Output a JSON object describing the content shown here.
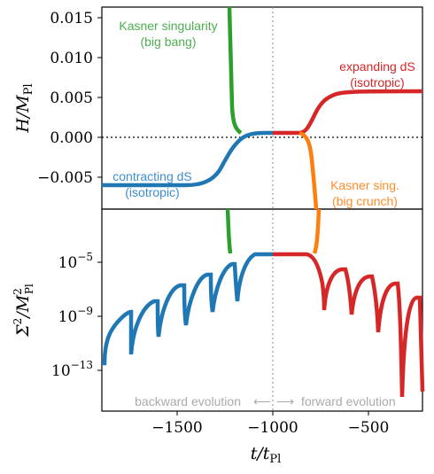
{
  "chart_data": [
    {
      "type": "line",
      "ylabel": "H/M_Pl",
      "xlim": [
        -1970,
        -560
      ],
      "ylim": [
        -0.0085,
        0.0163
      ],
      "yticks": [
        -0.005,
        0.0,
        0.005,
        0.01,
        0.015
      ],
      "ytick_labels": [
        "−0.005",
        "0.000",
        "0.005",
        "0.010",
        "0.015"
      ],
      "reference_line_y": 0.0,
      "reference_line_x": -1000,
      "series": [
        {
          "color": "#1f77b4",
          "x": [
            -1970,
            -1550,
            -1450,
            -1400,
            -1350,
            -1300,
            -1250,
            -1200,
            -1170,
            -1140,
            -1000
          ],
          "y": [
            -0.0058,
            -0.0058,
            -0.0056,
            -0.005,
            -0.004,
            -0.0028,
            -0.0015,
            -0.0004,
            0.0002,
            0.0006,
            0.0006
          ]
        },
        {
          "color": "#2ca02c",
          "x": [
            -1140,
            -1160,
            -1180,
            -1190,
            -1198,
            -1205,
            -1210
          ],
          "y": [
            0.0006,
            0.0014,
            0.0035,
            0.006,
            0.009,
            0.013,
            0.0163
          ]
        },
        {
          "color": "#d62728",
          "x": [
            -1000,
            -860,
            -830,
            -800,
            -750,
            -700,
            -650,
            -600,
            -550,
            -450,
            -560
          ],
          "y": [
            0.0006,
            0.0006,
            0.0012,
            0.002,
            0.0032,
            0.0043,
            0.005,
            0.0054,
            0.0056,
            0.0058,
            0.0058
          ]
        },
        {
          "color": "#ff7f0e",
          "x": [
            -860,
            -840,
            -820,
            -800,
            -792,
            -785,
            -780
          ],
          "y": [
            0.0006,
            -0.0002,
            -0.002,
            -0.0048,
            -0.0068,
            -0.008,
            -0.0085
          ]
        }
      ]
    },
    {
      "type": "line",
      "ylabel": "Σ²/M²_Pl",
      "xlabel": "t/t_Pl",
      "xlim": [
        -1970,
        -560
      ],
      "ylim_log10": [
        -15.3,
        -1.5
      ],
      "yticks_log10": [
        -13,
        -9,
        -5
      ],
      "ytick_labels": [
        "10^{−13}",
        "10^{−9}",
        "10^{−5}"
      ],
      "xticks": [
        -1500,
        -1000,
        -500
      ],
      "xtick_labels": [
        "−1500",
        "−1000",
        "−500"
      ],
      "reference_line_x": -1000,
      "series": [
        {
          "color": "#1f77b4",
          "x": [
            -1970,
            -1950,
            -1830,
            -1700,
            -1570,
            -1440,
            -1310,
            -1200,
            -1140,
            -1000
          ],
          "y_log10_note": "oscillating, envelope rising toward plateau",
          "minima_x": [
            -1950,
            -1830,
            -1700,
            -1570,
            -1440,
            -1310
          ],
          "minima_log10": [
            -12.3,
            -12.0,
            -11.0,
            -10.0,
            -9.6,
            -9.0
          ],
          "plateau_log10": -4.2
        },
        {
          "color": "#2ca02c",
          "x": [
            -1140,
            -1180,
            -1200,
            -1210
          ],
          "y_log10": [
            -4.2,
            -3.8,
            -3.0,
            -1.5
          ]
        },
        {
          "color": "#d62728",
          "x": [
            -1000,
            -860,
            -750,
            -630,
            -510,
            -400,
            -290,
            -200,
            -560
          ],
          "minima_x": [
            -750,
            -630,
            -510,
            -400,
            -290,
            -200
          ],
          "minima_log10": [
            -8.4,
            -9.0,
            -10.3,
            -11.5,
            -14.0,
            -14.2
          ],
          "plateau_log10": -4.2
        },
        {
          "color": "#ff7f0e",
          "x": [
            -860,
            -830,
            -800,
            -790
          ],
          "y_log10": [
            -4.2,
            -3.8,
            -3.0,
            -1.5
          ]
        }
      ]
    }
  ],
  "annotations": {
    "kasner_big_bang_line1": "Kasner singularity",
    "kasner_big_bang_line2": "(big bang)",
    "expanding_ds_line1": "expanding dS",
    "expanding_ds_line2": "(isotropic)",
    "contracting_ds_line1": "contracting dS",
    "contracting_ds_line2": "(isotropic)",
    "kasner_crunch_line1": "Kasner sing.",
    "kasner_crunch_line2": "(big crunch)",
    "backward": "backward evolution",
    "forward": "forward evolution"
  },
  "colors": {
    "blue": "#1f77b4",
    "green": "#2ca02c",
    "red": "#d62728",
    "orange": "#ff7f0e",
    "annotation_blue": "#3d8fcf",
    "annotation_green": "#4caf50",
    "annotation_red": "#d62728",
    "annotation_orange": "#ff8c2a",
    "gray": "#aaaaaa"
  }
}
